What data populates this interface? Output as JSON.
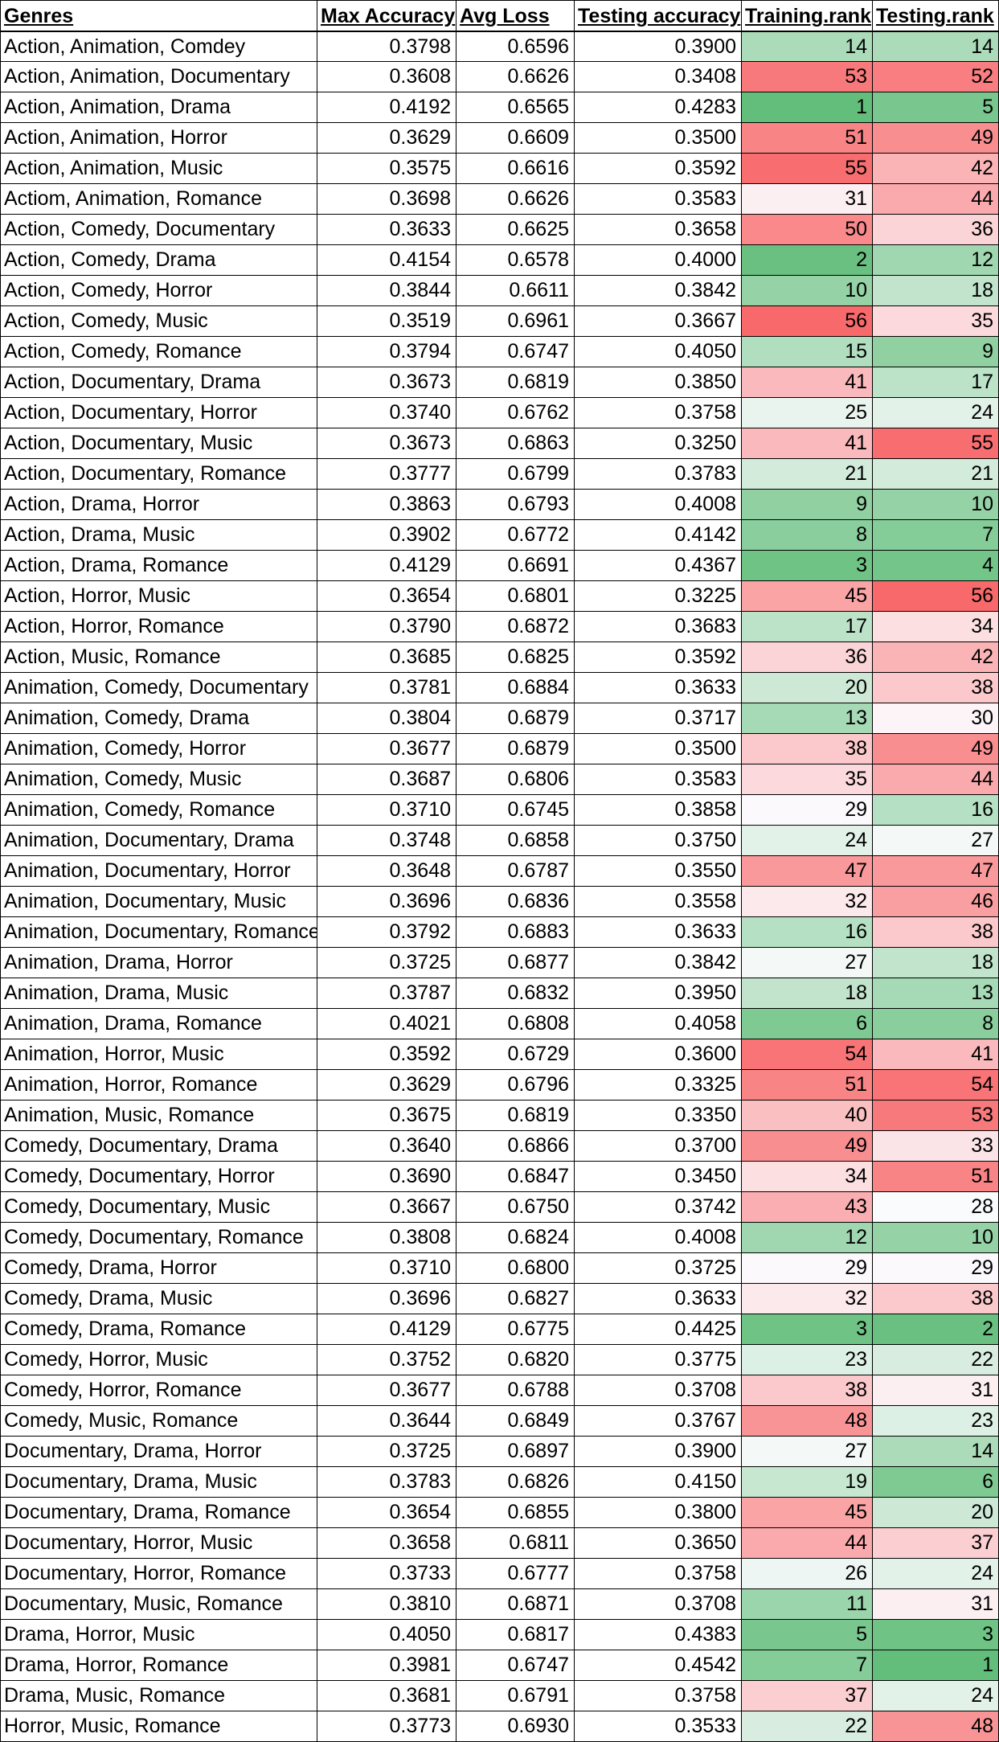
{
  "columns": [
    "Genres",
    "Max Accuracy",
    "Avg Loss",
    "Testing accuracy",
    "Training.rank",
    "Testing.rank"
  ],
  "rank_count": 56,
  "colors": {
    "best": "#63be7b",
    "middle": "#fcfcff",
    "worst": "#f8696b"
  },
  "rows": [
    [
      "Action, Animation, Comdey",
      "0.3798",
      "0.6596",
      "0.3900",
      14,
      14
    ],
    [
      "Action, Animation, Documentary",
      "0.3608",
      "0.6626",
      "0.3408",
      53,
      52
    ],
    [
      "Action, Animation, Drama",
      "0.4192",
      "0.6565",
      "0.4283",
      1,
      5
    ],
    [
      "Action, Animation, Horror",
      "0.3629",
      "0.6609",
      "0.3500",
      51,
      49
    ],
    [
      "Action, Animation, Music",
      "0.3575",
      "0.6616",
      "0.3592",
      55,
      42
    ],
    [
      "Actiom, Animation, Romance",
      "0.3698",
      "0.6626",
      "0.3583",
      31,
      44
    ],
    [
      "Action, Comedy, Documentary",
      "0.3633",
      "0.6625",
      "0.3658",
      50,
      36
    ],
    [
      "Action, Comedy, Drama",
      "0.4154",
      "0.6578",
      "0.4000",
      2,
      12
    ],
    [
      "Action, Comedy, Horror",
      "0.3844",
      "0.6611",
      "0.3842",
      10,
      18
    ],
    [
      "Action, Comedy, Music",
      "0.3519",
      "0.6961",
      "0.3667",
      56,
      35
    ],
    [
      "Action, Comedy, Romance",
      "0.3794",
      "0.6747",
      "0.4050",
      15,
      9
    ],
    [
      "Action, Documentary, Drama",
      "0.3673",
      "0.6819",
      "0.3850",
      41,
      17
    ],
    [
      "Action, Documentary, Horror",
      "0.3740",
      "0.6762",
      "0.3758",
      25,
      24
    ],
    [
      "Action, Documentary, Music",
      "0.3673",
      "0.6863",
      "0.3250",
      41,
      55
    ],
    [
      "Action, Documentary, Romance",
      "0.3777",
      "0.6799",
      "0.3783",
      21,
      21
    ],
    [
      "Action, Drama, Horror",
      "0.3863",
      "0.6793",
      "0.4008",
      9,
      10
    ],
    [
      "Action, Drama, Music",
      "0.3902",
      "0.6772",
      "0.4142",
      8,
      7
    ],
    [
      "Action, Drama, Romance",
      "0.4129",
      "0.6691",
      "0.4367",
      3,
      4
    ],
    [
      "Action, Horror, Music",
      "0.3654",
      "0.6801",
      "0.3225",
      45,
      56
    ],
    [
      "Action, Horror, Romance",
      "0.3790",
      "0.6872",
      "0.3683",
      17,
      34
    ],
    [
      "Action, Music, Romance",
      "0.3685",
      "0.6825",
      "0.3592",
      36,
      42
    ],
    [
      "Animation, Comedy, Documentary",
      "0.3781",
      "0.6884",
      "0.3633",
      20,
      38
    ],
    [
      "Animation, Comedy, Drama",
      "0.3804",
      "0.6879",
      "0.3717",
      13,
      30
    ],
    [
      "Animation, Comedy, Horror",
      "0.3677",
      "0.6879",
      "0.3500",
      38,
      49
    ],
    [
      "Animation, Comedy, Music",
      "0.3687",
      "0.6806",
      "0.3583",
      35,
      44
    ],
    [
      "Animation, Comedy, Romance",
      "0.3710",
      "0.6745",
      "0.3858",
      29,
      16
    ],
    [
      "Animation, Documentary, Drama",
      "0.3748",
      "0.6858",
      "0.3750",
      24,
      27
    ],
    [
      "Animation, Documentary, Horror",
      "0.3648",
      "0.6787",
      "0.3550",
      47,
      47
    ],
    [
      "Animation, Documentary, Music",
      "0.3696",
      "0.6836",
      "0.3558",
      32,
      46
    ],
    [
      "Animation, Documentary, Romance",
      "0.3792",
      "0.6883",
      "0.3633",
      16,
      38
    ],
    [
      "Animation, Drama, Horror",
      "0.3725",
      "0.6877",
      "0.3842",
      27,
      18
    ],
    [
      "Animation, Drama, Music",
      "0.3787",
      "0.6832",
      "0.3950",
      18,
      13
    ],
    [
      "Animation, Drama, Romance",
      "0.4021",
      "0.6808",
      "0.4058",
      6,
      8
    ],
    [
      "Animation, Horror, Music",
      "0.3592",
      "0.6729",
      "0.3600",
      54,
      41
    ],
    [
      "Animation, Horror, Romance",
      "0.3629",
      "0.6796",
      "0.3325",
      51,
      54
    ],
    [
      "Animation, Music, Romance",
      "0.3675",
      "0.6819",
      "0.3350",
      40,
      53
    ],
    [
      "Comedy, Documentary, Drama",
      "0.3640",
      "0.6866",
      "0.3700",
      49,
      33
    ],
    [
      "Comedy, Documentary, Horror",
      "0.3690",
      "0.6847",
      "0.3450",
      34,
      51
    ],
    [
      "Comedy, Documentary, Music",
      "0.3667",
      "0.6750",
      "0.3742",
      43,
      28
    ],
    [
      "Comedy, Documentary, Romance",
      "0.3808",
      "0.6824",
      "0.4008",
      12,
      10
    ],
    [
      "Comedy, Drama, Horror",
      "0.3710",
      "0.6800",
      "0.3725",
      29,
      29
    ],
    [
      "Comedy, Drama, Music",
      "0.3696",
      "0.6827",
      "0.3633",
      32,
      38
    ],
    [
      "Comedy, Drama, Romance",
      "0.4129",
      "0.6775",
      "0.4425",
      3,
      2
    ],
    [
      "Comedy, Horror, Music",
      "0.3752",
      "0.6820",
      "0.3775",
      23,
      22
    ],
    [
      "Comedy, Horror, Romance",
      "0.3677",
      "0.6788",
      "0.3708",
      38,
      31
    ],
    [
      "Comedy, Music, Romance",
      "0.3644",
      "0.6849",
      "0.3767",
      48,
      23
    ],
    [
      "Documentary, Drama, Horror",
      "0.3725",
      "0.6897",
      "0.3900",
      27,
      14
    ],
    [
      "Documentary, Drama, Music",
      "0.3783",
      "0.6826",
      "0.4150",
      19,
      6
    ],
    [
      "Documentary, Drama, Romance",
      "0.3654",
      "0.6855",
      "0.3800",
      45,
      20
    ],
    [
      "Documentary, Horror, Music",
      "0.3658",
      "0.6811",
      "0.3650",
      44,
      37
    ],
    [
      "Documentary, Horror, Romance",
      "0.3733",
      "0.6777",
      "0.3758",
      26,
      24
    ],
    [
      "Documentary, Music, Romance",
      "0.3810",
      "0.6871",
      "0.3708",
      11,
      31
    ],
    [
      "Drama, Horror, Music",
      "0.4050",
      "0.6817",
      "0.4383",
      5,
      3
    ],
    [
      "Drama, Horror, Romance",
      "0.3981",
      "0.6747",
      "0.4542",
      7,
      1
    ],
    [
      "Drama, Music, Romance",
      "0.3681",
      "0.6791",
      "0.3758",
      37,
      24
    ],
    [
      "Horror, Music, Romance",
      "0.3773",
      "0.6930",
      "0.3533",
      22,
      48
    ]
  ]
}
